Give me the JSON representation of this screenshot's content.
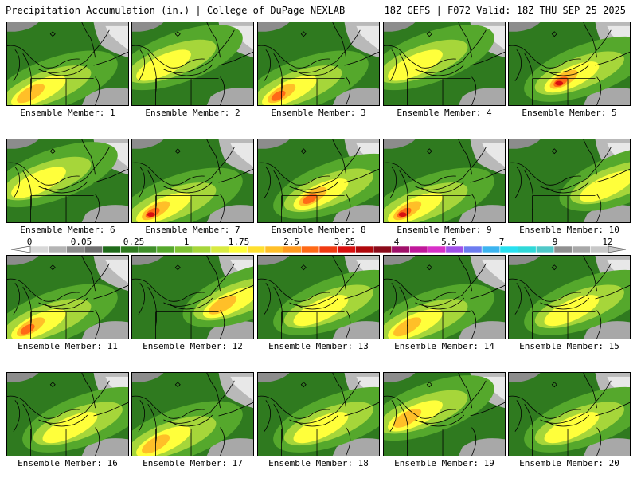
{
  "header": {
    "left": "Precipitation Accumulation (in.) | College of DuPage NEXLAB",
    "right": "18Z GEFS | F072 Valid: 18Z THU SEP 25 2025"
  },
  "caption_prefix": "Ensemble Member: ",
  "members": [
    {
      "id": "1",
      "caption": "Ensemble Member: 1",
      "max": 2.0,
      "core": "sw"
    },
    {
      "id": "2",
      "caption": "Ensemble Member: 2",
      "max": 1.2,
      "core": "w"
    },
    {
      "id": "3",
      "caption": "Ensemble Member: 3",
      "max": 2.3,
      "core": "sw"
    },
    {
      "id": "4",
      "caption": "Ensemble Member: 4",
      "max": 1.6,
      "core": "w"
    },
    {
      "id": "5",
      "caption": "Ensemble Member: 5",
      "max": 2.6,
      "core": "c"
    },
    {
      "id": "6",
      "caption": "Ensemble Member: 6",
      "max": 1.0,
      "core": "w"
    },
    {
      "id": "7",
      "caption": "Ensemble Member: 7",
      "max": 3.0,
      "core": "sw"
    },
    {
      "id": "8",
      "caption": "Ensemble Member: 8",
      "max": 2.2,
      "core": "c"
    },
    {
      "id": "9",
      "caption": "Ensemble Member: 9",
      "max": 2.5,
      "core": "sw"
    },
    {
      "id": "10",
      "caption": "Ensemble Member: 10",
      "max": 1.3,
      "core": "e"
    },
    {
      "id": "11",
      "caption": "Ensemble Member: 11",
      "max": 2.4,
      "core": "sw"
    },
    {
      "id": "12",
      "caption": "Ensemble Member: 12",
      "max": 1.9,
      "core": "e"
    },
    {
      "id": "13",
      "caption": "Ensemble Member: 13",
      "max": 1.5,
      "core": "c"
    },
    {
      "id": "14",
      "caption": "Ensemble Member: 14",
      "max": 2.0,
      "core": "sw"
    },
    {
      "id": "15",
      "caption": "Ensemble Member: 15",
      "max": 1.3,
      "core": "c"
    },
    {
      "id": "16",
      "caption": "Ensemble Member: 16",
      "max": 1.2,
      "core": "c"
    },
    {
      "id": "17",
      "caption": "Ensemble Member: 17",
      "max": 2.1,
      "core": "sw"
    },
    {
      "id": "18",
      "caption": "Ensemble Member: 18",
      "max": 1.0,
      "core": "c"
    },
    {
      "id": "19",
      "caption": "Ensemble Member: 19",
      "max": 1.9,
      "core": "w"
    },
    {
      "id": "20",
      "caption": "Ensemble Member: 20",
      "max": 1.1,
      "core": "c"
    }
  ],
  "colorbar": {
    "tick_labels": [
      "0",
      "0.05",
      "0.25",
      "1",
      "1.75",
      "2.5",
      "3.25",
      "4",
      "5.5",
      "7",
      "9",
      "12"
    ],
    "colors": [
      "#d8d8d8",
      "#b4b4b4",
      "#8c8c8c",
      "#6e6e6e",
      "#1f6b1a",
      "#2f7a1f",
      "#3f8f2a",
      "#55a82c",
      "#7fc233",
      "#a6d63a",
      "#d8ea42",
      "#ffff3b",
      "#ffe030",
      "#ffbf28",
      "#ff9a1f",
      "#ff6a17",
      "#f03a12",
      "#d81010",
      "#b0080c",
      "#8b0b1a",
      "#a0106a",
      "#c0189a",
      "#d830c8",
      "#a050e8",
      "#6c7cf0",
      "#3cb4f0",
      "#28e0f0",
      "#30d8d8",
      "#50c8c8",
      "#909090",
      "#a8a8a8",
      "#c8c8c8"
    ],
    "thresholds": [
      0,
      0.05,
      0.25,
      1,
      1.75,
      2.5,
      3.25,
      4,
      5.5,
      7,
      9,
      12
    ]
  }
}
